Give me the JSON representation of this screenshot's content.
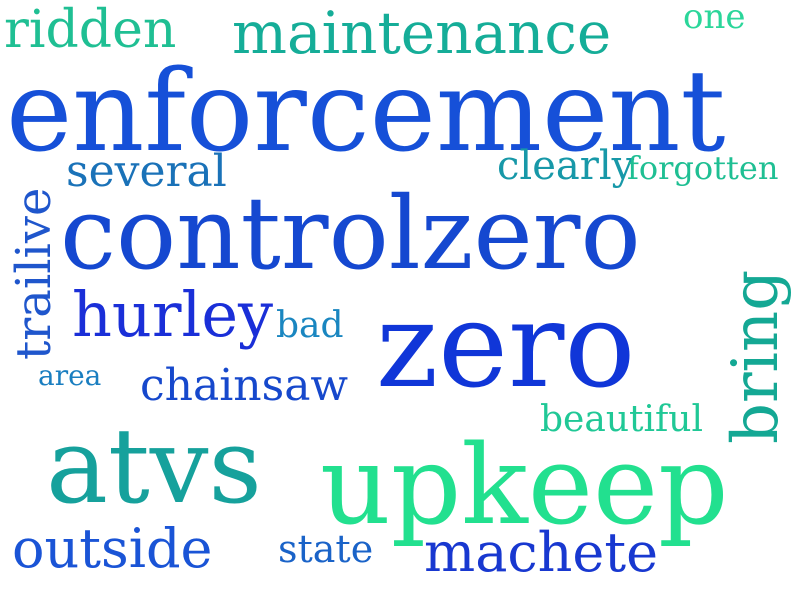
{
  "word_cloud": {
    "words": [
      {
        "text": "ridden",
        "color": "#1fbf93"
      },
      {
        "text": "maintenance",
        "color": "#15ad98"
      },
      {
        "text": "one",
        "color": "#2bd69a"
      },
      {
        "text": "enforcement",
        "color": "#1650d8"
      },
      {
        "text": "several",
        "color": "#1a72b8"
      },
      {
        "text": "clearly",
        "color": "#1798a8"
      },
      {
        "text": "forgotten",
        "color": "#1fbf93"
      },
      {
        "text": "trailive",
        "color": "#1f56cc"
      },
      {
        "text": "controlzero",
        "color": "#1548d0"
      },
      {
        "text": "hurley",
        "color": "#1a2fd8"
      },
      {
        "text": "bad",
        "color": "#1a86c0"
      },
      {
        "text": "zero",
        "color": "#1036d8"
      },
      {
        "text": "bring",
        "color": "#14a894"
      },
      {
        "text": "area",
        "color": "#1a7ec0"
      },
      {
        "text": "chainsaw",
        "color": "#1648cc"
      },
      {
        "text": "beautiful",
        "color": "#20c896"
      },
      {
        "text": "atvs",
        "color": "#16a19c"
      },
      {
        "text": "upkeep",
        "color": "#22e08f"
      },
      {
        "text": "outside",
        "color": "#1a54d6"
      },
      {
        "text": "state",
        "color": "#1a63c8"
      },
      {
        "text": "machete",
        "color": "#1838d0"
      }
    ]
  }
}
